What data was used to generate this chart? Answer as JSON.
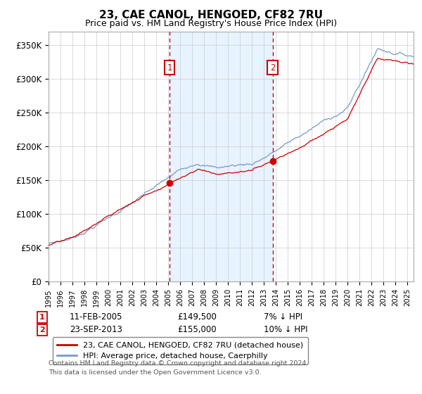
{
  "title": "23, CAE CANOL, HENGOED, CF82 7RU",
  "subtitle": "Price paid vs. HM Land Registry's House Price Index (HPI)",
  "ylabel_ticks": [
    "£0",
    "£50K",
    "£100K",
    "£150K",
    "£200K",
    "£250K",
    "£300K",
    "£350K"
  ],
  "ytick_values": [
    0,
    50000,
    100000,
    150000,
    200000,
    250000,
    300000,
    350000
  ],
  "ylim": [
    0,
    370000
  ],
  "xlim_start": 1995.0,
  "xlim_end": 2025.5,
  "sale1_date": 2005.12,
  "sale1_price": 149500,
  "sale1_label": "1",
  "sale1_text": "11-FEB-2005",
  "sale1_price_text": "£149,500",
  "sale1_hpi_text": "7% ↓ HPI",
  "sale2_date": 2013.73,
  "sale2_price": 155000,
  "sale2_label": "2",
  "sale2_text": "23-SEP-2013",
  "sale2_price_text": "£155,000",
  "sale2_hpi_text": "10% ↓ HPI",
  "hpi_color": "#7799cc",
  "price_color": "#cc0000",
  "shade_color": "#ddeeff",
  "legend_line1": "23, CAE CANOL, HENGOED, CF82 7RU (detached house)",
  "legend_line2": "HPI: Average price, detached house, Caerphilly",
  "footer_line1": "Contains HM Land Registry data © Crown copyright and database right 2024.",
  "footer_line2": "This data is licensed under the Open Government Licence v3.0."
}
